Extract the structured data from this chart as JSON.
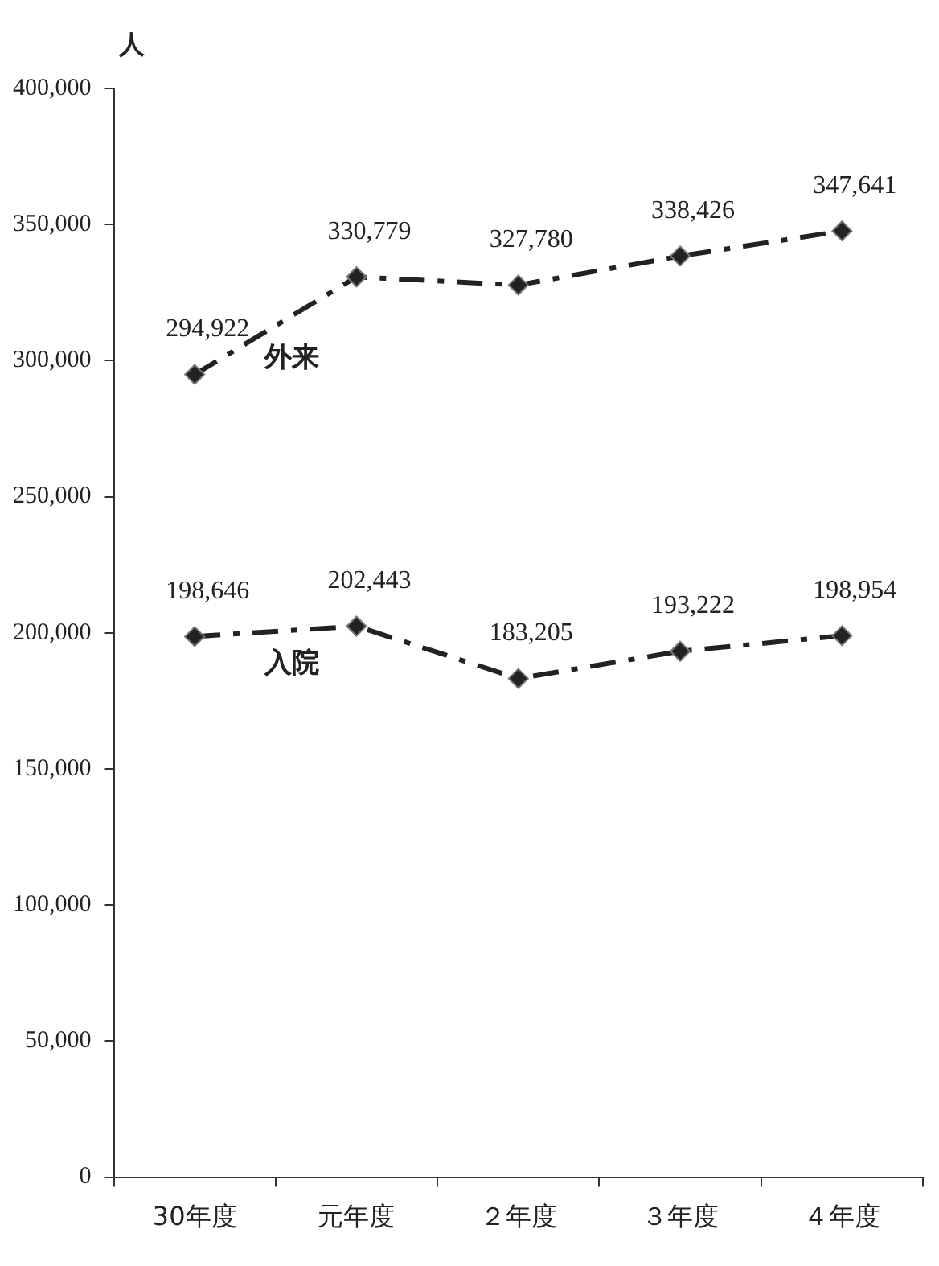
{
  "chart_data": {
    "type": "line",
    "ylabel": "人",
    "categories": [
      "30年度",
      "元年度",
      "２年度",
      "３年度",
      "４年度"
    ],
    "series": [
      {
        "name": "外来",
        "color": "#222222",
        "values": [
          294922,
          330779,
          327780,
          338426,
          347641
        ],
        "value_labels": [
          "294,922",
          "330,779",
          "327,780",
          "338,426",
          "347,641"
        ]
      },
      {
        "name": "入院",
        "color": "#222222",
        "values": [
          198646,
          202443,
          183205,
          193222,
          198954
        ],
        "value_labels": [
          "198,646",
          "202,443",
          "183,205",
          "193,222",
          "198,954"
        ]
      }
    ],
    "ylim": [
      0,
      400000
    ],
    "yticks": [
      {
        "value": 0,
        "label": "0"
      },
      {
        "value": 50000,
        "label": "50,000"
      },
      {
        "value": 100000,
        "label": "100,000"
      },
      {
        "value": 150000,
        "label": "150,000"
      },
      {
        "value": 200000,
        "label": "200,000"
      },
      {
        "value": 250000,
        "label": "250,000"
      },
      {
        "value": 300000,
        "label": "300,000"
      },
      {
        "value": 350000,
        "label": "350,000"
      },
      {
        "value": 400000,
        "label": "400,000"
      }
    ],
    "grid": false,
    "legend": false,
    "marker": "diamond",
    "line_style": "dashed"
  }
}
